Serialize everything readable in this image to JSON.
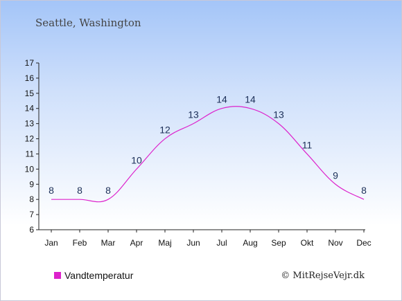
{
  "chart_data": {
    "type": "line",
    "title": "Seattle, Washington",
    "xlabel": "",
    "ylabel": "",
    "categories": [
      "Jan",
      "Feb",
      "Mar",
      "Apr",
      "Maj",
      "Jun",
      "Jul",
      "Aug",
      "Sep",
      "Okt",
      "Nov",
      "Dec"
    ],
    "series": [
      {
        "name": "Vandtemperatur",
        "values": [
          8,
          8,
          8,
          10,
          12,
          13,
          14,
          14,
          13,
          11,
          9,
          8
        ],
        "color": "#dd22cc"
      }
    ],
    "data_labels": [
      "8",
      "8",
      "8",
      "10",
      "12",
      "13",
      "14",
      "14",
      "13",
      "11",
      "9",
      "8"
    ],
    "ylim": [
      6,
      17
    ],
    "yticks": [
      6,
      7,
      8,
      9,
      10,
      11,
      12,
      13,
      14,
      15,
      16,
      17
    ],
    "grid": false,
    "legend_position": "bottom-left",
    "credit": "© MitRejseVejr.dk"
  }
}
